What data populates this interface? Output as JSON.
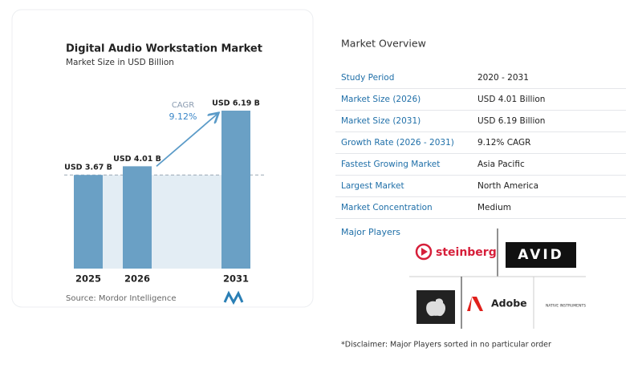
{
  "chart_data": {
    "type": "bar",
    "title": "Digital Audio Workstation Market",
    "subtitle": "Market Size in USD Billion",
    "categories": [
      "2025",
      "2026",
      "2031"
    ],
    "values": [
      3.67,
      4.01,
      6.19
    ],
    "value_labels": [
      "USD 3.67 B",
      "USD 4.01 B",
      "USD 6.19 B"
    ],
    "color": "#6aa0c5",
    "annotation": {
      "label": "CAGR",
      "value": "9.12%"
    },
    "source": "Source: Mordor Intelligence"
  },
  "overview": {
    "title": "Market Overview",
    "rows": [
      [
        "Study Period",
        "2020 - 2031"
      ],
      [
        "Market Size (2026)",
        "USD 4.01 Billion"
      ],
      [
        "Market Size (2031)",
        "USD 6.19 Billion"
      ],
      [
        "Growth Rate (2026 - 2031)",
        "9.12% CAGR"
      ],
      [
        "Fastest Growing Market",
        "Asia Pacific"
      ],
      [
        "Largest Market",
        "North America"
      ],
      [
        "Market Concentration",
        "Medium"
      ]
    ]
  },
  "players": {
    "title": "Major Players",
    "names": [
      "steinberg",
      "AVID",
      "Adobe",
      "NATIVE INSTRUMENTS"
    ]
  },
  "disclaimer": "*Disclaimer: Major Players sorted in no particular order"
}
